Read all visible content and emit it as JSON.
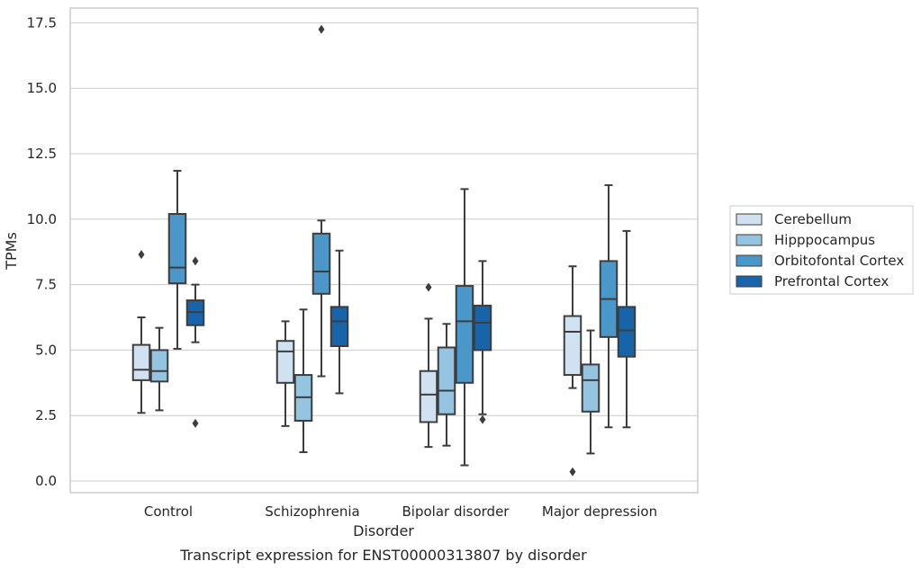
{
  "caption": "Transcript expression for ENST00000313807 by disorder",
  "chart_data": {
    "type": "box",
    "title": "",
    "xlabel": "Disorder",
    "ylabel": "TPMs",
    "ylim": [
      -0.45,
      18.1
    ],
    "yticks": [
      "0.0",
      "2.5",
      "5.0",
      "7.5",
      "10.0",
      "12.5",
      "15.0",
      "17.5"
    ],
    "ytick_values": [
      0,
      2.5,
      5,
      7.5,
      10,
      12.5,
      15,
      17.5
    ],
    "categories": [
      "Control",
      "Schizophrenia",
      "Bipolar disorder",
      "Major depression"
    ],
    "grid": "horizontal",
    "legend_position": "right",
    "series": [
      {
        "name": "Cerebellum",
        "color": "#d0e1f2",
        "boxes": [
          {
            "whislo": 2.6,
            "q1": 3.85,
            "med": 4.25,
            "q3": 5.2,
            "whishi": 6.25,
            "fliers": [
              8.65
            ]
          },
          {
            "whislo": 2.1,
            "q1": 3.75,
            "med": 4.95,
            "q3": 5.35,
            "whishi": 6.1,
            "fliers": []
          },
          {
            "whislo": 1.3,
            "q1": 2.25,
            "med": 3.3,
            "q3": 4.2,
            "whishi": 6.2,
            "fliers": [
              7.4
            ]
          },
          {
            "whislo": 3.55,
            "q1": 4.05,
            "med": 5.7,
            "q3": 6.3,
            "whishi": 8.2,
            "fliers": [
              0.35
            ]
          }
        ]
      },
      {
        "name": "Hipppocampus",
        "color": "#94c4df",
        "boxes": [
          {
            "whislo": 2.7,
            "q1": 3.8,
            "med": 4.2,
            "q3": 5.0,
            "whishi": 5.85,
            "fliers": []
          },
          {
            "whislo": 1.1,
            "q1": 2.3,
            "med": 3.2,
            "q3": 4.05,
            "whishi": 6.55,
            "fliers": []
          },
          {
            "whislo": 1.35,
            "q1": 2.55,
            "med": 3.45,
            "q3": 5.1,
            "whishi": 6.0,
            "fliers": []
          },
          {
            "whislo": 1.05,
            "q1": 2.65,
            "med": 3.85,
            "q3": 4.45,
            "whishi": 5.75,
            "fliers": []
          }
        ]
      },
      {
        "name": "Orbitofontal Cortex",
        "color": "#4a98c9",
        "boxes": [
          {
            "whislo": 5.05,
            "q1": 7.55,
            "med": 8.15,
            "q3": 10.2,
            "whishi": 11.85,
            "fliers": []
          },
          {
            "whislo": 4.0,
            "q1": 7.15,
            "med": 8.0,
            "q3": 9.45,
            "whishi": 9.95,
            "fliers": [
              17.25
            ]
          },
          {
            "whislo": 0.6,
            "q1": 3.75,
            "med": 6.1,
            "q3": 7.45,
            "whishi": 11.15,
            "fliers": []
          },
          {
            "whislo": 2.05,
            "q1": 5.5,
            "med": 6.95,
            "q3": 8.4,
            "whishi": 11.3,
            "fliers": []
          }
        ]
      },
      {
        "name": "Prefrontal Cortex",
        "color": "#1764ab",
        "boxes": [
          {
            "whislo": 5.3,
            "q1": 5.95,
            "med": 6.45,
            "q3": 6.9,
            "whishi": 7.5,
            "fliers": [
              8.4,
              2.2
            ]
          },
          {
            "whislo": 3.35,
            "q1": 5.15,
            "med": 6.1,
            "q3": 6.65,
            "whishi": 8.8,
            "fliers": []
          },
          {
            "whislo": 2.55,
            "q1": 5.0,
            "med": 6.05,
            "q3": 6.7,
            "whishi": 8.4,
            "fliers": [
              2.35
            ]
          },
          {
            "whislo": 2.05,
            "q1": 4.75,
            "med": 5.75,
            "q3": 6.65,
            "whishi": 9.55,
            "fliers": []
          }
        ]
      }
    ]
  }
}
